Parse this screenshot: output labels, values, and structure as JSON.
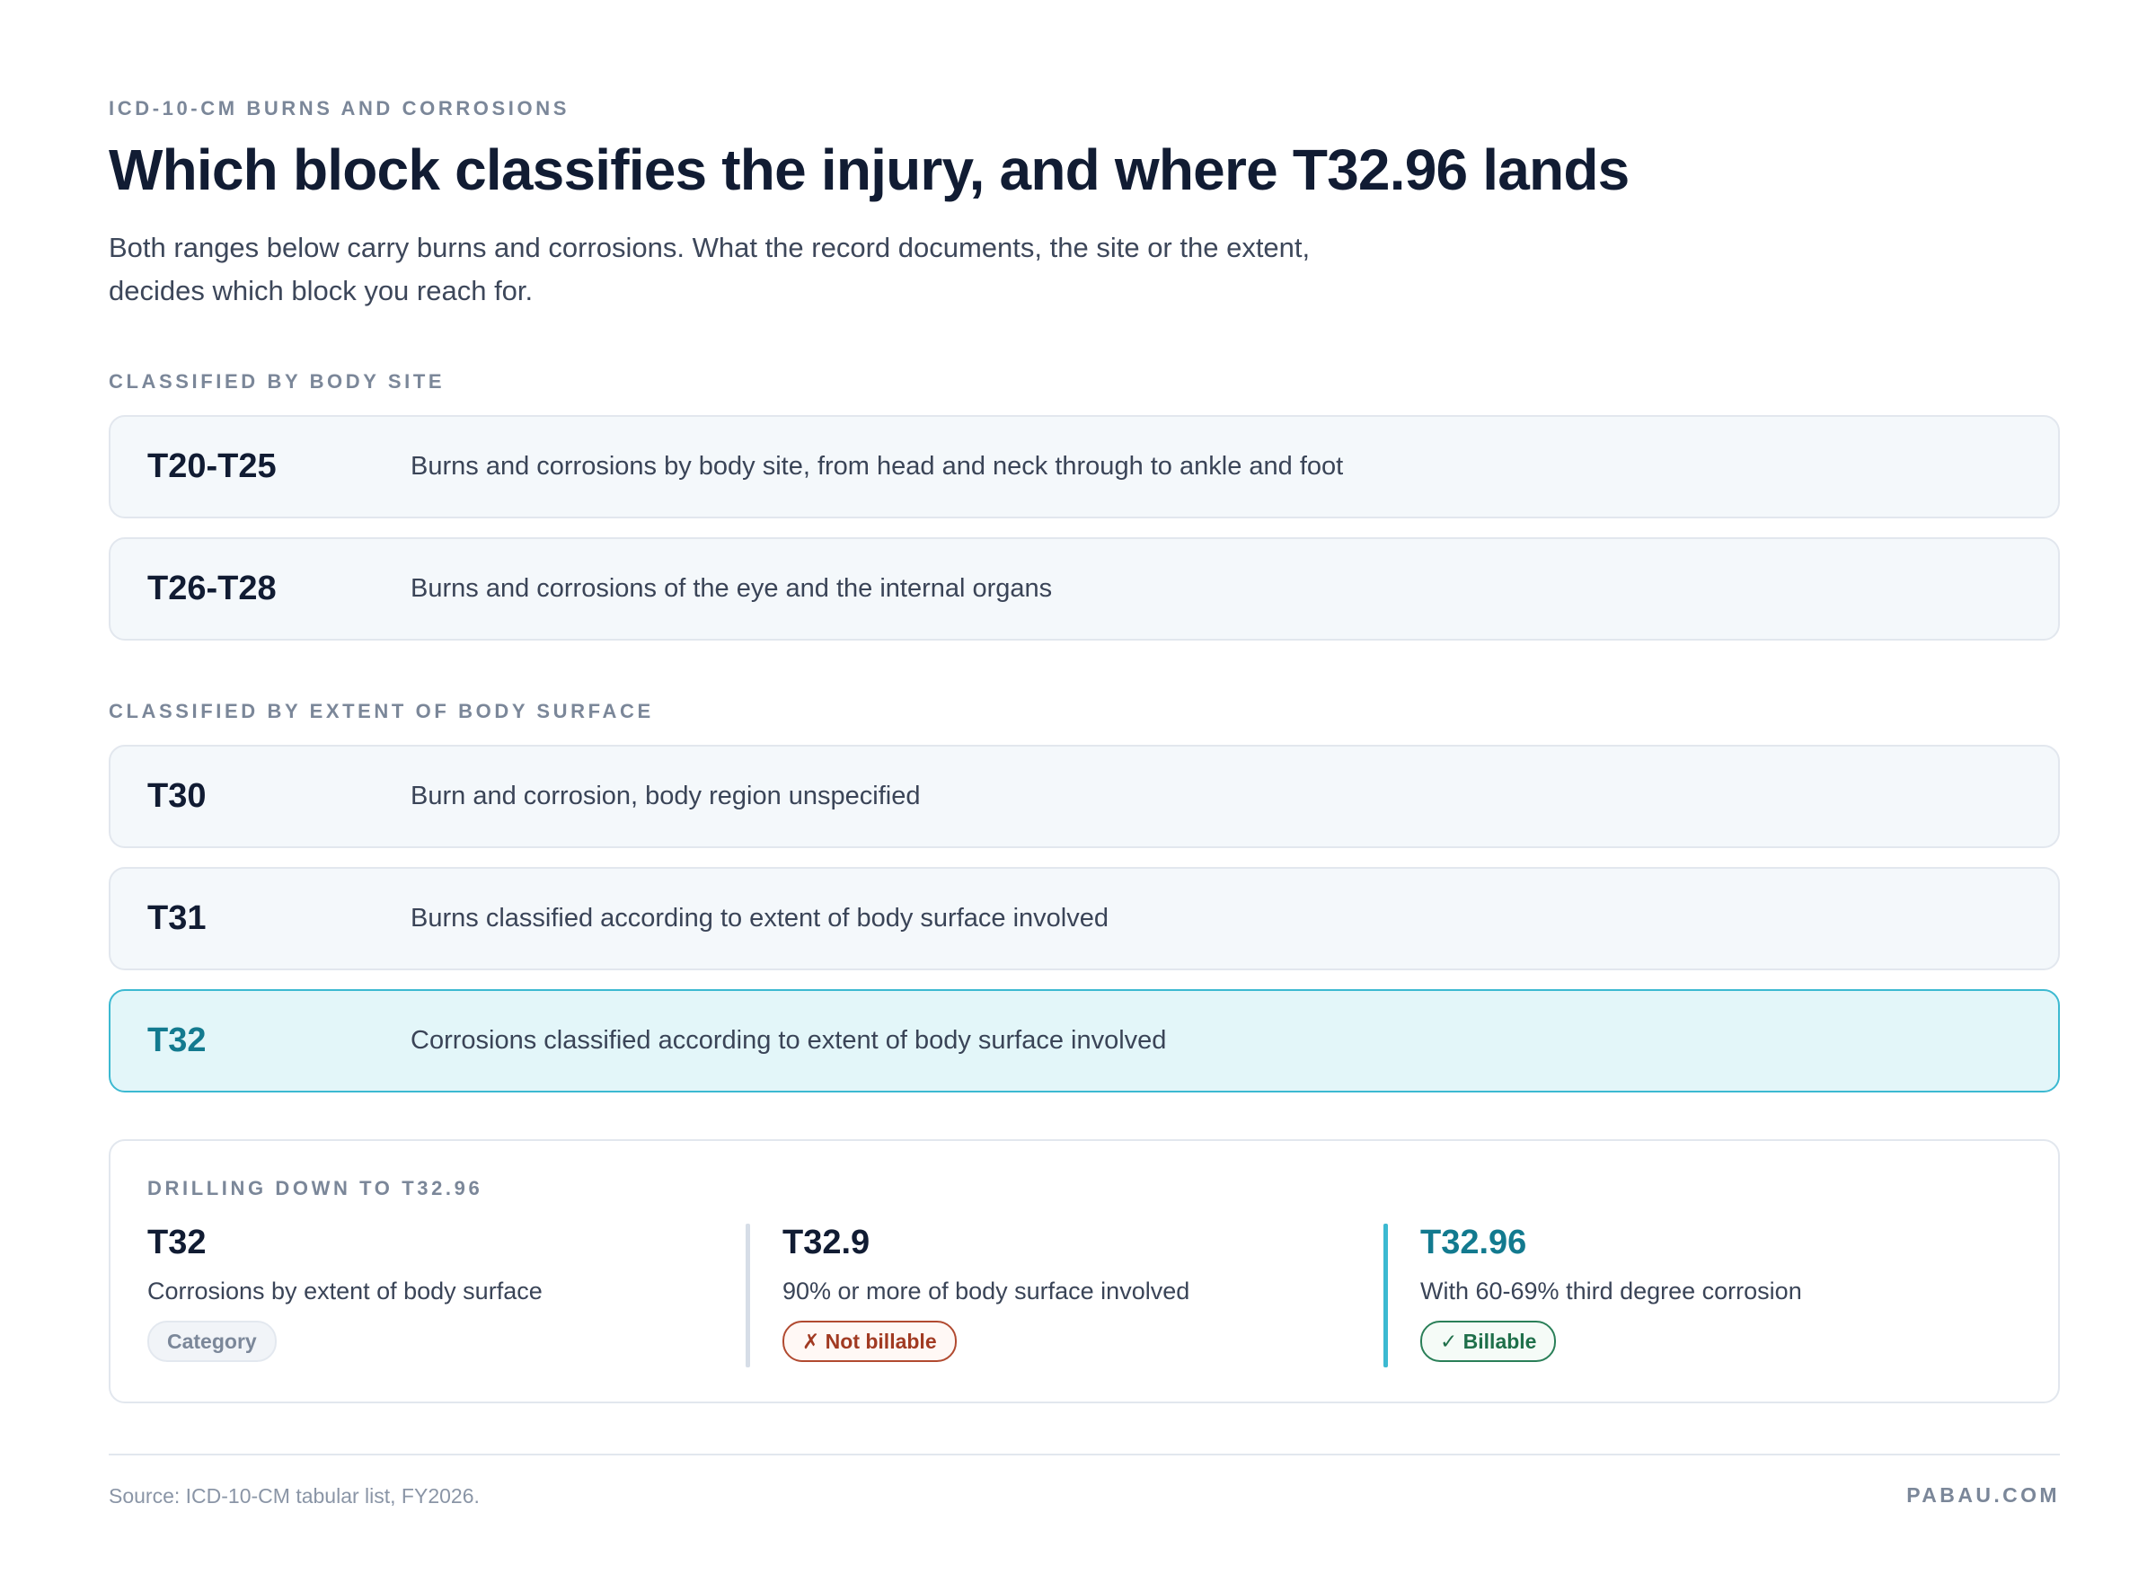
{
  "header": {
    "eyebrow": "ICD-10-CM BURNS AND CORROSIONS",
    "title": "Which block classifies the injury, and where T32.96 lands",
    "subtitle": "Both ranges below carry burns and corrosions. What the record documents, the site or the extent, decides which block you reach for."
  },
  "site_section": {
    "label": "CLASSIFIED BY BODY SITE",
    "rows": [
      {
        "code": "T20-T25",
        "description": "Burns and corrosions by body site, from head and neck through to ankle and foot"
      },
      {
        "code": "T26-T28",
        "description": "Burns and corrosions of the eye and the internal organs"
      }
    ]
  },
  "extent_section": {
    "label": "CLASSIFIED BY EXTENT OF BODY SURFACE",
    "rows": [
      {
        "code": "T30",
        "description": "Burn and corrosion, body region unspecified"
      },
      {
        "code": "T31",
        "description": "Burns classified according to extent of body surface involved"
      },
      {
        "code": "T32",
        "description": "Corrosions classified according to extent of body surface involved",
        "highlighted": true
      }
    ]
  },
  "drill_down": {
    "label": "DRILLING DOWN TO T32.96",
    "steps": [
      {
        "code": "T32",
        "description": "Corrosions by extent of body surface",
        "badge": "Category"
      },
      {
        "code": "T32.9",
        "description": "90% or more of body surface involved",
        "badge": "✗ Not billable"
      },
      {
        "code": "T32.96",
        "description": "With 60-69% third degree corrosion",
        "badge": "✓ Billable"
      }
    ]
  },
  "footer": {
    "source": "Source: ICD-10-CM tabular list, FY2026.",
    "brand": "PABAU.COM"
  },
  "colors": {
    "accent": "#137a8f",
    "highlight_bg": "#e3f6f9",
    "highlight_border": "#3cb9d1",
    "not_billable": "#a13a22",
    "billable": "#1f6f4a"
  }
}
